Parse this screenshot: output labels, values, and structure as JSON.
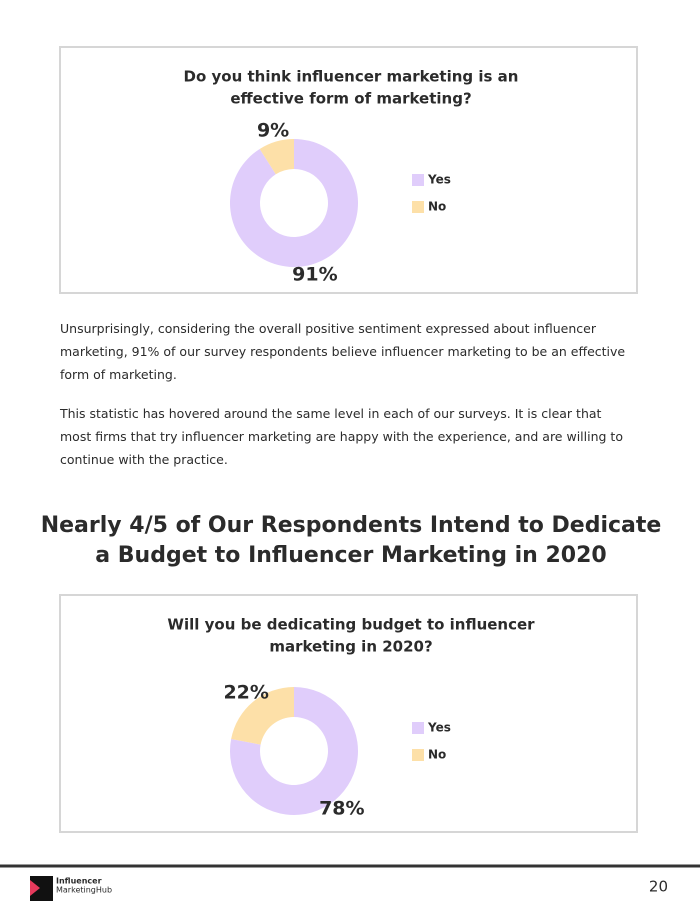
{
  "chart_data": [
    {
      "type": "donut",
      "title": [
        "Do you think influencer marketing is an",
        "effective form of marketing?"
      ],
      "categories": [
        "Yes",
        "No"
      ],
      "values": [
        91,
        9
      ],
      "value_labels": [
        "91%",
        "9%"
      ],
      "colors": [
        "#e0cdfb",
        "#fde0a8"
      ]
    },
    {
      "type": "donut",
      "title": [
        "Will you be dedicating budget to influencer",
        "marketing in 2020?"
      ],
      "categories": [
        "Yes",
        "No"
      ],
      "values": [
        78,
        22
      ],
      "value_labels": [
        "78%",
        "22%"
      ],
      "colors": [
        "#e0cdfb",
        "#fde0a8"
      ]
    }
  ],
  "paragraphs": [
    "Unsurprisingly, considering the overall positive sentiment expressed about influencer marketing, 91% of our survey respondents believe influencer marketing to be an effective form of marketing.",
    "This statistic has hovered around the same level in each of our surveys. It is clear that most firms that try influencer marketing are happy with the experience, and are willing to continue with the practice."
  ],
  "heading": [
    "Nearly 4/5 of Our Respondents Intend to Dedicate",
    "a Budget to Influencer Marketing in 2020"
  ],
  "footer": {
    "logo": [
      "Influencer",
      "MarketingHub"
    ],
    "page_number": "20"
  }
}
